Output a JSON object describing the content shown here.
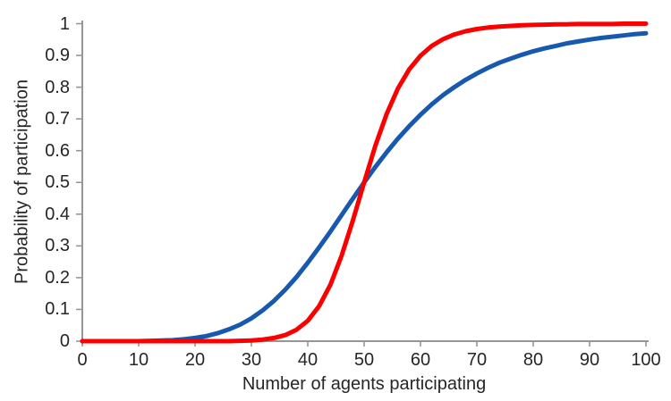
{
  "chart_data": {
    "type": "line",
    "title": "",
    "xlabel": "Number of agents participating",
    "ylabel": "Probability of participation",
    "xlim": [
      0,
      100
    ],
    "ylim": [
      0,
      1
    ],
    "x_ticks": [
      0,
      10,
      20,
      30,
      40,
      50,
      60,
      70,
      80,
      90,
      100
    ],
    "x_tick_labels": [
      "0",
      "10",
      "20",
      "30",
      "40",
      "50",
      "60",
      "70",
      "80",
      "90",
      "100"
    ],
    "y_ticks": [
      0,
      0.1,
      0.2,
      0.3,
      0.4,
      0.5,
      0.6,
      0.7,
      0.8,
      0.9,
      1
    ],
    "y_tick_labels": [
      "0",
      "0.1",
      "0.2",
      "0.3",
      "0.4",
      "0.5",
      "0.6",
      "0.7",
      "0.8",
      "0.9",
      "1"
    ],
    "grid": false,
    "legend": "none",
    "axis_color": "#969696",
    "text_color": "#262626",
    "x": [
      0,
      2,
      4,
      6,
      8,
      10,
      12,
      14,
      16,
      18,
      20,
      22,
      24,
      26,
      28,
      30,
      32,
      34,
      36,
      38,
      40,
      42,
      44,
      46,
      48,
      50,
      52,
      54,
      56,
      58,
      60,
      62,
      64,
      66,
      68,
      70,
      72,
      74,
      76,
      78,
      80,
      82,
      84,
      86,
      88,
      90,
      92,
      94,
      96,
      98,
      100
    ],
    "series": [
      {
        "name": "blue curve (gradual sigmoid)",
        "color": "#1659AE",
        "stroke_width": 5,
        "values": [
          0,
          0,
          0,
          0,
          0,
          0,
          0.001,
          0.002,
          0.003,
          0.006,
          0.01,
          0.016,
          0.025,
          0.037,
          0.052,
          0.072,
          0.097,
          0.127,
          0.162,
          0.202,
          0.247,
          0.295,
          0.345,
          0.397,
          0.449,
          0.5,
          0.549,
          0.595,
          0.638,
          0.677,
          0.713,
          0.746,
          0.775,
          0.8,
          0.823,
          0.843,
          0.861,
          0.877,
          0.89,
          0.902,
          0.913,
          0.922,
          0.93,
          0.938,
          0.944,
          0.95,
          0.955,
          0.959,
          0.963,
          0.967,
          0.97
        ]
      },
      {
        "name": "red curve (steep sigmoid)",
        "color": "#FC0000",
        "stroke_width": 5,
        "values": [
          0,
          0,
          0,
          0,
          0,
          0,
          0,
          0,
          0,
          0,
          0,
          0,
          0,
          0,
          0.001,
          0.002,
          0.005,
          0.01,
          0.019,
          0.036,
          0.064,
          0.11,
          0.177,
          0.269,
          0.38,
          0.5,
          0.616,
          0.716,
          0.796,
          0.856,
          0.899,
          0.93,
          0.951,
          0.966,
          0.976,
          0.983,
          0.988,
          0.991,
          0.993,
          0.995,
          0.996,
          0.997,
          0.998,
          0.998,
          0.999,
          0.999,
          0.999,
          0.999,
          1,
          1,
          1
        ]
      }
    ],
    "crossing_point": {
      "x": 50,
      "y": 0.5
    }
  }
}
